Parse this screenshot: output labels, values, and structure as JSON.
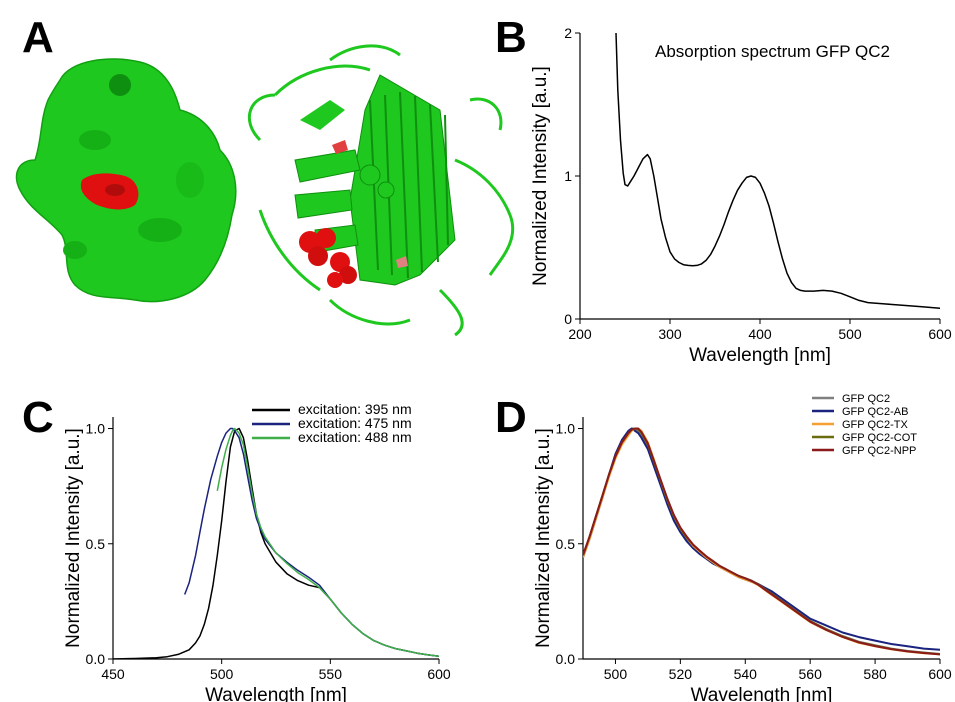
{
  "panels": {
    "A": {
      "label": "A"
    },
    "B": {
      "label": "B"
    },
    "C": {
      "label": "C"
    },
    "D": {
      "label": "D"
    }
  },
  "colors": {
    "protein_green": "#1ec81e",
    "protein_dark": "#0f8f0f",
    "highlight_red": "#e01010"
  },
  "chart_data": [
    {
      "panel": "B",
      "type": "line",
      "title": "Absorption spectrum GFP QC2",
      "xlabel": "Wavelength [nm]",
      "ylabel": "Normalized Intensity [a.u.]",
      "xlim": [
        200,
        600
      ],
      "ylim": [
        0,
        2
      ],
      "xticks": [
        "200",
        "300",
        "400",
        "500",
        "600"
      ],
      "yticks": [
        "0",
        "1",
        "2"
      ],
      "series": [
        {
          "color": "#000000",
          "x": [
            240,
            242,
            245,
            248,
            250,
            253,
            256,
            260,
            265,
            270,
            275,
            278,
            282,
            286,
            290,
            295,
            300,
            305,
            310,
            315,
            320,
            325,
            330,
            335,
            340,
            345,
            350,
            355,
            360,
            365,
            370,
            375,
            380,
            385,
            390,
            395,
            400,
            405,
            410,
            415,
            420,
            425,
            430,
            435,
            440,
            445,
            450,
            460,
            470,
            480,
            490,
            500,
            510,
            520,
            540,
            560,
            580,
            600
          ],
          "y": [
            2.0,
            1.6,
            1.25,
            1.02,
            0.94,
            0.93,
            0.96,
            1.0,
            1.06,
            1.12,
            1.15,
            1.12,
            1.0,
            0.85,
            0.7,
            0.57,
            0.47,
            0.42,
            0.395,
            0.38,
            0.375,
            0.372,
            0.375,
            0.385,
            0.41,
            0.45,
            0.51,
            0.58,
            0.66,
            0.75,
            0.83,
            0.9,
            0.95,
            0.99,
            1.0,
            0.99,
            0.95,
            0.88,
            0.79,
            0.67,
            0.54,
            0.42,
            0.32,
            0.255,
            0.215,
            0.2,
            0.195,
            0.195,
            0.2,
            0.195,
            0.18,
            0.155,
            0.13,
            0.115,
            0.105,
            0.095,
            0.085,
            0.075
          ]
        }
      ]
    },
    {
      "panel": "C",
      "type": "line",
      "xlabel": "Wavelength [nm]",
      "ylabel": "Normalized Intensity [a.u.]",
      "xlim": [
        450,
        600
      ],
      "ylim": [
        0,
        1.05
      ],
      "xticks": [
        "450",
        "500",
        "550",
        "600"
      ],
      "yticks": [
        "0.0",
        "0.5",
        "1.0"
      ],
      "legend_position": "top-right",
      "series": [
        {
          "name": "excitation: 395 nm",
          "color": "#000000",
          "x": [
            450,
            460,
            470,
            475,
            480,
            485,
            488,
            490,
            492,
            494,
            496,
            498,
            500,
            502,
            504,
            506,
            508,
            510,
            512,
            514,
            516,
            518,
            520,
            525,
            530,
            535,
            540,
            545,
            550,
            555,
            560,
            565,
            570,
            575,
            580,
            585,
            590,
            595,
            600
          ],
          "y": [
            0.0,
            0.002,
            0.005,
            0.01,
            0.02,
            0.04,
            0.07,
            0.1,
            0.15,
            0.22,
            0.32,
            0.45,
            0.6,
            0.77,
            0.92,
            0.99,
            1.0,
            0.96,
            0.86,
            0.74,
            0.63,
            0.55,
            0.5,
            0.42,
            0.37,
            0.34,
            0.32,
            0.31,
            0.26,
            0.2,
            0.15,
            0.11,
            0.08,
            0.06,
            0.045,
            0.035,
            0.025,
            0.018,
            0.012
          ]
        },
        {
          "name": "excitation: 475 nm",
          "color": "#1a237e",
          "x": [
            483,
            485,
            488,
            490,
            492,
            495,
            498,
            500,
            502,
            504,
            505,
            506,
            508,
            510,
            512,
            514,
            516,
            518,
            520,
            525,
            530,
            535,
            540,
            545,
            550,
            555,
            560,
            565,
            570,
            575,
            580,
            585,
            590,
            595,
            600
          ],
          "y": [
            0.28,
            0.33,
            0.45,
            0.55,
            0.65,
            0.78,
            0.88,
            0.94,
            0.98,
            1.0,
            1.0,
            0.99,
            0.96,
            0.89,
            0.79,
            0.69,
            0.61,
            0.56,
            0.52,
            0.46,
            0.42,
            0.385,
            0.355,
            0.32,
            0.26,
            0.2,
            0.15,
            0.11,
            0.08,
            0.06,
            0.045,
            0.035,
            0.025,
            0.018,
            0.012
          ]
        },
        {
          "name": "excitation: 488 nm",
          "color": "#3fae49",
          "x": [
            498,
            499,
            500,
            502,
            504,
            505,
            506,
            508,
            510,
            512,
            514,
            516,
            518,
            520,
            525,
            530,
            535,
            540,
            545,
            550,
            555,
            560,
            565,
            570,
            575,
            580,
            585,
            590,
            595,
            600
          ],
          "y": [
            0.73,
            0.78,
            0.83,
            0.91,
            0.97,
            0.99,
            1.0,
            0.98,
            0.93,
            0.83,
            0.72,
            0.63,
            0.57,
            0.53,
            0.46,
            0.415,
            0.375,
            0.345,
            0.31,
            0.26,
            0.2,
            0.15,
            0.11,
            0.08,
            0.06,
            0.045,
            0.035,
            0.025,
            0.018,
            0.012
          ]
        }
      ]
    },
    {
      "panel": "D",
      "type": "line",
      "xlabel": "Wavelength [nm]",
      "ylabel": "Normalized Intensity [a.u.]",
      "xlim": [
        490,
        600
      ],
      "ylim": [
        0,
        1.05
      ],
      "xticks": [
        "500",
        "520",
        "540",
        "560",
        "580",
        "600"
      ],
      "yticks": [
        "0.0",
        "0.5",
        "1.0"
      ],
      "legend_position": "top-right",
      "series": [
        {
          "name": "GFP QC2",
          "color": "#808080",
          "x": [
            490,
            492,
            494,
            496,
            498,
            500,
            502,
            504,
            505,
            506,
            507,
            508,
            510,
            512,
            514,
            516,
            518,
            520,
            522,
            524,
            526,
            528,
            530,
            532,
            534,
            536,
            538,
            540,
            542,
            544,
            546,
            548,
            550,
            552,
            554,
            556,
            558,
            560,
            565,
            570,
            575,
            580,
            585,
            590,
            595,
            600
          ],
          "y": [
            0.45,
            0.53,
            0.62,
            0.71,
            0.8,
            0.88,
            0.94,
            0.985,
            1.0,
            1.0,
            0.99,
            0.97,
            0.92,
            0.84,
            0.76,
            0.68,
            0.61,
            0.56,
            0.52,
            0.49,
            0.465,
            0.44,
            0.42,
            0.405,
            0.39,
            0.375,
            0.36,
            0.35,
            0.34,
            0.325,
            0.305,
            0.285,
            0.265,
            0.245,
            0.225,
            0.205,
            0.185,
            0.165,
            0.13,
            0.1,
            0.075,
            0.06,
            0.045,
            0.035,
            0.028,
            0.022
          ]
        },
        {
          "name": "GFP QC2-AB",
          "color": "#1a237e",
          "x": [
            490,
            492,
            494,
            496,
            498,
            500,
            502,
            504,
            505,
            506,
            507,
            508,
            510,
            512,
            514,
            516,
            518,
            520,
            522,
            524,
            526,
            528,
            530,
            532,
            534,
            536,
            538,
            540,
            542,
            544,
            546,
            548,
            550,
            552,
            554,
            556,
            558,
            560,
            565,
            570,
            575,
            580,
            585,
            590,
            595,
            600
          ],
          "y": [
            0.44,
            0.52,
            0.61,
            0.7,
            0.8,
            0.89,
            0.95,
            0.99,
            1.0,
            0.99,
            0.98,
            0.96,
            0.91,
            0.83,
            0.75,
            0.67,
            0.6,
            0.55,
            0.51,
            0.48,
            0.455,
            0.435,
            0.415,
            0.4,
            0.385,
            0.37,
            0.355,
            0.345,
            0.335,
            0.325,
            0.31,
            0.295,
            0.275,
            0.255,
            0.235,
            0.215,
            0.195,
            0.175,
            0.145,
            0.115,
            0.095,
            0.08,
            0.065,
            0.055,
            0.045,
            0.04
          ]
        },
        {
          "name": "GFP QC2-TX",
          "color": "#f5a033",
          "x": [
            490,
            492,
            494,
            496,
            498,
            500,
            502,
            504,
            505,
            506,
            507,
            508,
            510,
            512,
            514,
            516,
            518,
            520,
            522,
            524,
            526,
            528,
            530,
            532,
            534,
            536,
            538,
            540,
            542,
            544,
            546,
            548,
            550,
            552,
            554,
            556,
            558,
            560,
            565,
            570,
            575,
            580,
            585,
            590,
            595,
            600
          ],
          "y": [
            0.44,
            0.52,
            0.61,
            0.7,
            0.79,
            0.87,
            0.93,
            0.97,
            0.99,
            1.0,
            1.0,
            0.99,
            0.94,
            0.86,
            0.77,
            0.69,
            0.62,
            0.565,
            0.525,
            0.49,
            0.465,
            0.44,
            0.42,
            0.4,
            0.385,
            0.37,
            0.355,
            0.345,
            0.335,
            0.32,
            0.3,
            0.28,
            0.26,
            0.24,
            0.22,
            0.2,
            0.18,
            0.16,
            0.125,
            0.095,
            0.07,
            0.055,
            0.042,
            0.032,
            0.025,
            0.02
          ]
        },
        {
          "name": "GFP QC2-COT",
          "color": "#6b6b10",
          "x": [
            490,
            492,
            494,
            496,
            498,
            500,
            502,
            504,
            505,
            506,
            507,
            508,
            510,
            512,
            514,
            516,
            518,
            520,
            522,
            524,
            526,
            528,
            530,
            532,
            534,
            536,
            538,
            540,
            542,
            544,
            546,
            548,
            550,
            552,
            554,
            556,
            558,
            560,
            565,
            570,
            575,
            580,
            585,
            590,
            595,
            600
          ],
          "y": [
            0.45,
            0.53,
            0.62,
            0.71,
            0.8,
            0.88,
            0.94,
            0.98,
            0.995,
            1.0,
            0.995,
            0.98,
            0.93,
            0.85,
            0.77,
            0.69,
            0.62,
            0.565,
            0.525,
            0.495,
            0.47,
            0.445,
            0.425,
            0.405,
            0.39,
            0.375,
            0.36,
            0.35,
            0.338,
            0.324,
            0.304,
            0.284,
            0.264,
            0.244,
            0.224,
            0.204,
            0.184,
            0.164,
            0.128,
            0.098,
            0.073,
            0.058,
            0.044,
            0.034,
            0.027,
            0.021
          ]
        },
        {
          "name": "GFP QC2-NPP",
          "color": "#8b1a1a",
          "x": [
            490,
            492,
            494,
            496,
            498,
            500,
            502,
            504,
            505,
            506,
            507,
            508,
            510,
            512,
            514,
            516,
            518,
            520,
            522,
            524,
            526,
            528,
            530,
            532,
            534,
            536,
            538,
            540,
            542,
            544,
            546,
            548,
            550,
            552,
            554,
            556,
            558,
            560,
            565,
            570,
            575,
            580,
            585,
            590,
            595,
            600
          ],
          "y": [
            0.45,
            0.53,
            0.62,
            0.71,
            0.8,
            0.88,
            0.94,
            0.98,
            0.995,
            1.0,
            1.0,
            0.985,
            0.935,
            0.855,
            0.775,
            0.695,
            0.625,
            0.57,
            0.53,
            0.495,
            0.47,
            0.445,
            0.425,
            0.405,
            0.39,
            0.375,
            0.36,
            0.35,
            0.338,
            0.322,
            0.302,
            0.282,
            0.262,
            0.242,
            0.222,
            0.202,
            0.182,
            0.162,
            0.126,
            0.096,
            0.072,
            0.056,
            0.043,
            0.033,
            0.026,
            0.02
          ]
        }
      ]
    }
  ]
}
